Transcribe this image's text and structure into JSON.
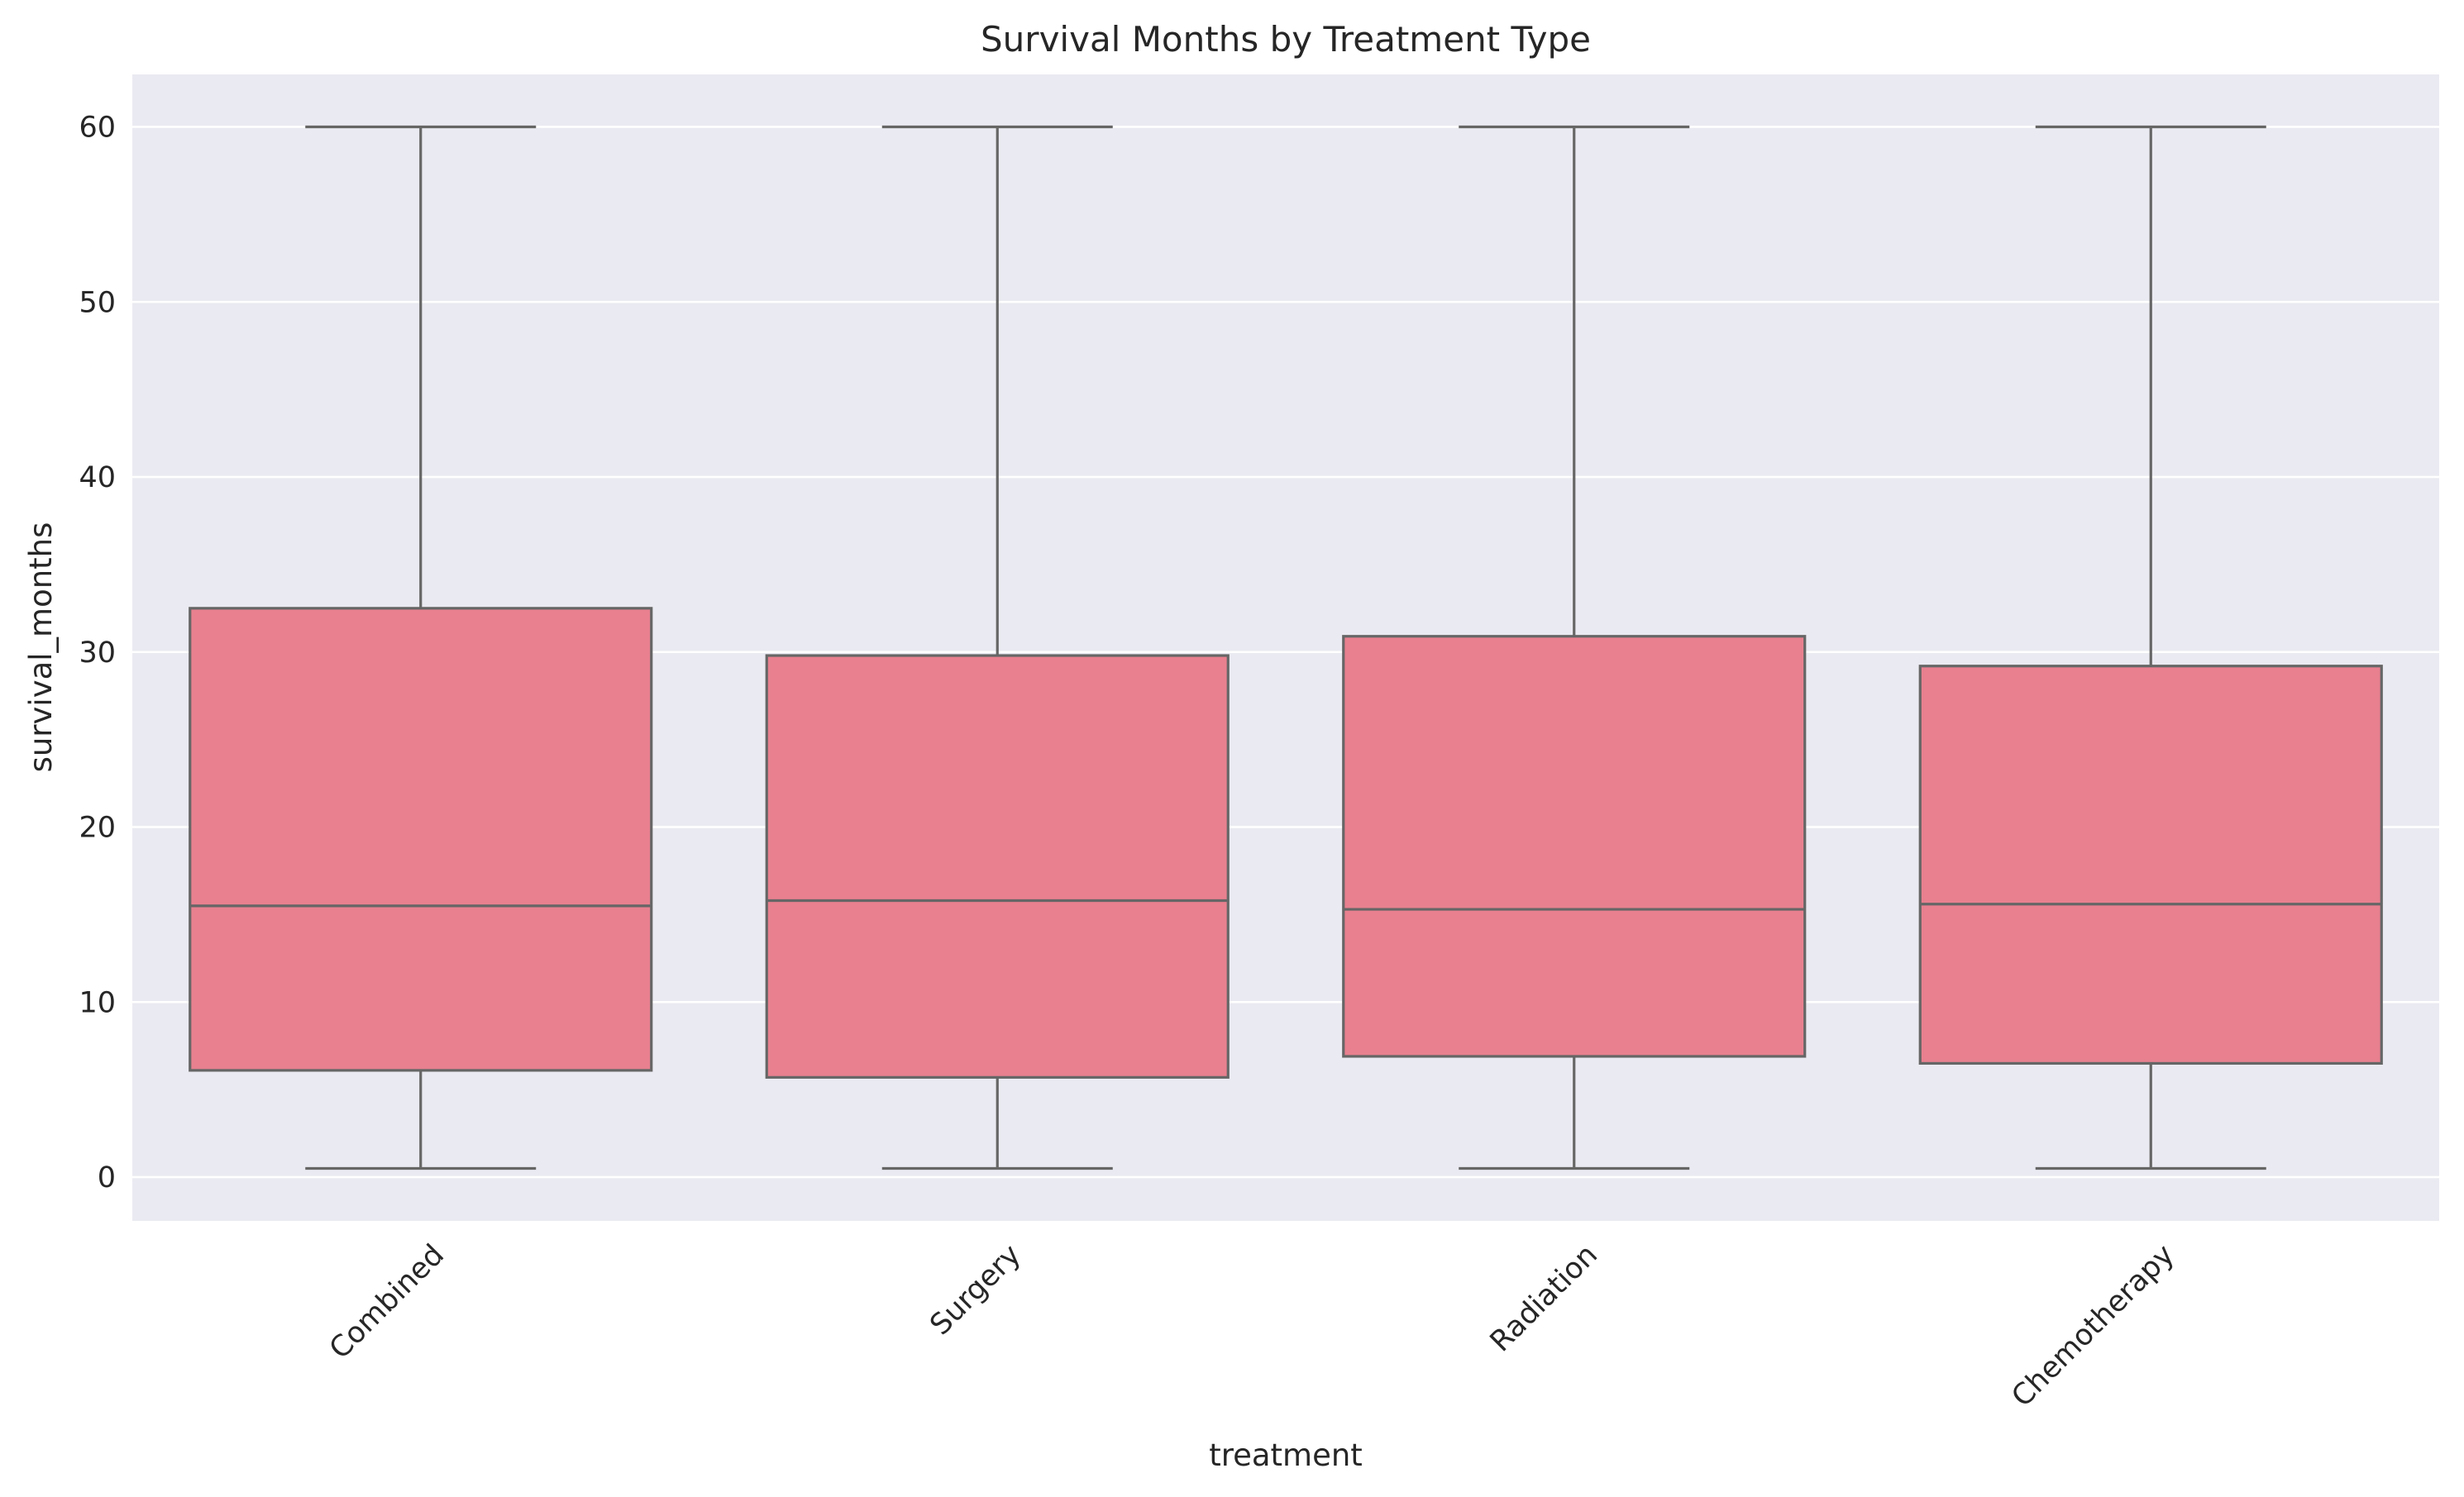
{
  "chart_data": {
    "type": "box",
    "title": "Survival Months by Treatment Type",
    "xlabel": "treatment",
    "ylabel": "survival_months",
    "categories": [
      "Combined",
      "Surgery",
      "Radiation",
      "Chemotherapy"
    ],
    "boxes": [
      {
        "category": "Combined",
        "min": 0.5,
        "q1": 6.1,
        "median": 15.5,
        "q3": 32.5,
        "max": 60
      },
      {
        "category": "Surgery",
        "min": 0.5,
        "q1": 5.7,
        "median": 15.8,
        "q3": 29.8,
        "max": 60
      },
      {
        "category": "Radiation",
        "min": 0.5,
        "q1": 6.9,
        "median": 15.3,
        "q3": 30.9,
        "max": 60
      },
      {
        "category": "Chemotherapy",
        "min": 0.5,
        "q1": 6.5,
        "median": 15.6,
        "q3": 29.2,
        "max": 60
      }
    ],
    "yticks": [
      0,
      10,
      20,
      30,
      40,
      50,
      60
    ],
    "ylim": [
      -2.5,
      63
    ],
    "grid": true,
    "colors": {
      "box_fill": "#e8808f",
      "line": "#666666",
      "plot_bg": "#eaeaf2",
      "grid": "#ffffff"
    }
  }
}
